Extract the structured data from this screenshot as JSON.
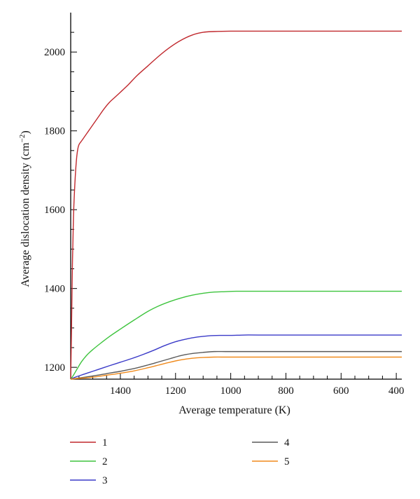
{
  "chart_data": {
    "type": "line",
    "title": "",
    "xlabel": "Average temperature (K)",
    "ylabel_main": "Average dislocation density (cm",
    "ylabel_sup": "−2",
    "ylabel_close": ")",
    "xlim": [
      1580,
      380
    ],
    "ylim": [
      1170,
      2100
    ],
    "x_reversed": true,
    "xticks": [
      1400,
      1200,
      1000,
      800,
      600,
      400
    ],
    "yticks": [
      1200,
      1400,
      1600,
      1800,
      2000
    ],
    "grid": false,
    "legend_position": "bottom",
    "series": [
      {
        "name": "1",
        "color": "#c0282d",
        "x": [
          1580,
          1577,
          1574,
          1570,
          1566,
          1562,
          1558,
          1554,
          1550,
          1540,
          1530,
          1515,
          1500,
          1480,
          1460,
          1440,
          1420,
          1400,
          1370,
          1340,
          1300,
          1260,
          1220,
          1180,
          1140,
          1100,
          1060,
          1000,
          900,
          700,
          500,
          380
        ],
        "y": [
          1170,
          1300,
          1450,
          1580,
          1650,
          1700,
          1735,
          1755,
          1765,
          1775,
          1785,
          1800,
          1815,
          1835,
          1855,
          1872,
          1885,
          1898,
          1918,
          1940,
          1965,
          1990,
          2012,
          2030,
          2043,
          2050,
          2052,
          2053,
          2053,
          2053,
          2053,
          2053
        ]
      },
      {
        "name": "2",
        "color": "#3ec43e",
        "x": [
          1580,
          1570,
          1555,
          1540,
          1520,
          1500,
          1470,
          1440,
          1400,
          1350,
          1300,
          1260,
          1220,
          1180,
          1140,
          1100,
          1060,
          1020,
          980,
          900,
          700,
          500,
          380
        ],
        "y": [
          1170,
          1180,
          1198,
          1215,
          1232,
          1245,
          1262,
          1278,
          1297,
          1320,
          1342,
          1356,
          1367,
          1376,
          1383,
          1388,
          1391,
          1392,
          1393,
          1393,
          1393,
          1393,
          1393
        ]
      },
      {
        "name": "3",
        "color": "#3a3ac8",
        "x": [
          1580,
          1560,
          1530,
          1500,
          1470,
          1440,
          1400,
          1360,
          1320,
          1280,
          1240,
          1200,
          1160,
          1120,
          1080,
          1040,
          1000,
          950,
          900,
          700,
          500,
          380
        ],
        "y": [
          1170,
          1176,
          1183,
          1190,
          1197,
          1204,
          1213,
          1222,
          1232,
          1243,
          1255,
          1265,
          1272,
          1277,
          1280,
          1281,
          1281,
          1282,
          1282,
          1282,
          1282,
          1282
        ]
      },
      {
        "name": "4",
        "color": "#5a5a5a",
        "x": [
          1580,
          1550,
          1500,
          1450,
          1400,
          1350,
          1300,
          1260,
          1220,
          1180,
          1140,
          1100,
          1060,
          1020,
          980,
          900,
          700,
          500,
          380
        ],
        "y": [
          1170,
          1173,
          1178,
          1184,
          1190,
          1197,
          1206,
          1214,
          1222,
          1230,
          1235,
          1238,
          1240,
          1240,
          1240,
          1240,
          1240,
          1240,
          1240
        ]
      },
      {
        "name": "5",
        "color": "#f08a1c",
        "x": [
          1580,
          1550,
          1500,
          1450,
          1400,
          1350,
          1300,
          1260,
          1220,
          1180,
          1140,
          1100,
          1060,
          1020,
          980,
          900,
          700,
          500,
          380
        ],
        "y": [
          1170,
          1172,
          1175,
          1180,
          1185,
          1191,
          1199,
          1206,
          1213,
          1219,
          1223,
          1225,
          1226,
          1226,
          1226,
          1226,
          1226,
          1226,
          1226
        ]
      }
    ]
  }
}
